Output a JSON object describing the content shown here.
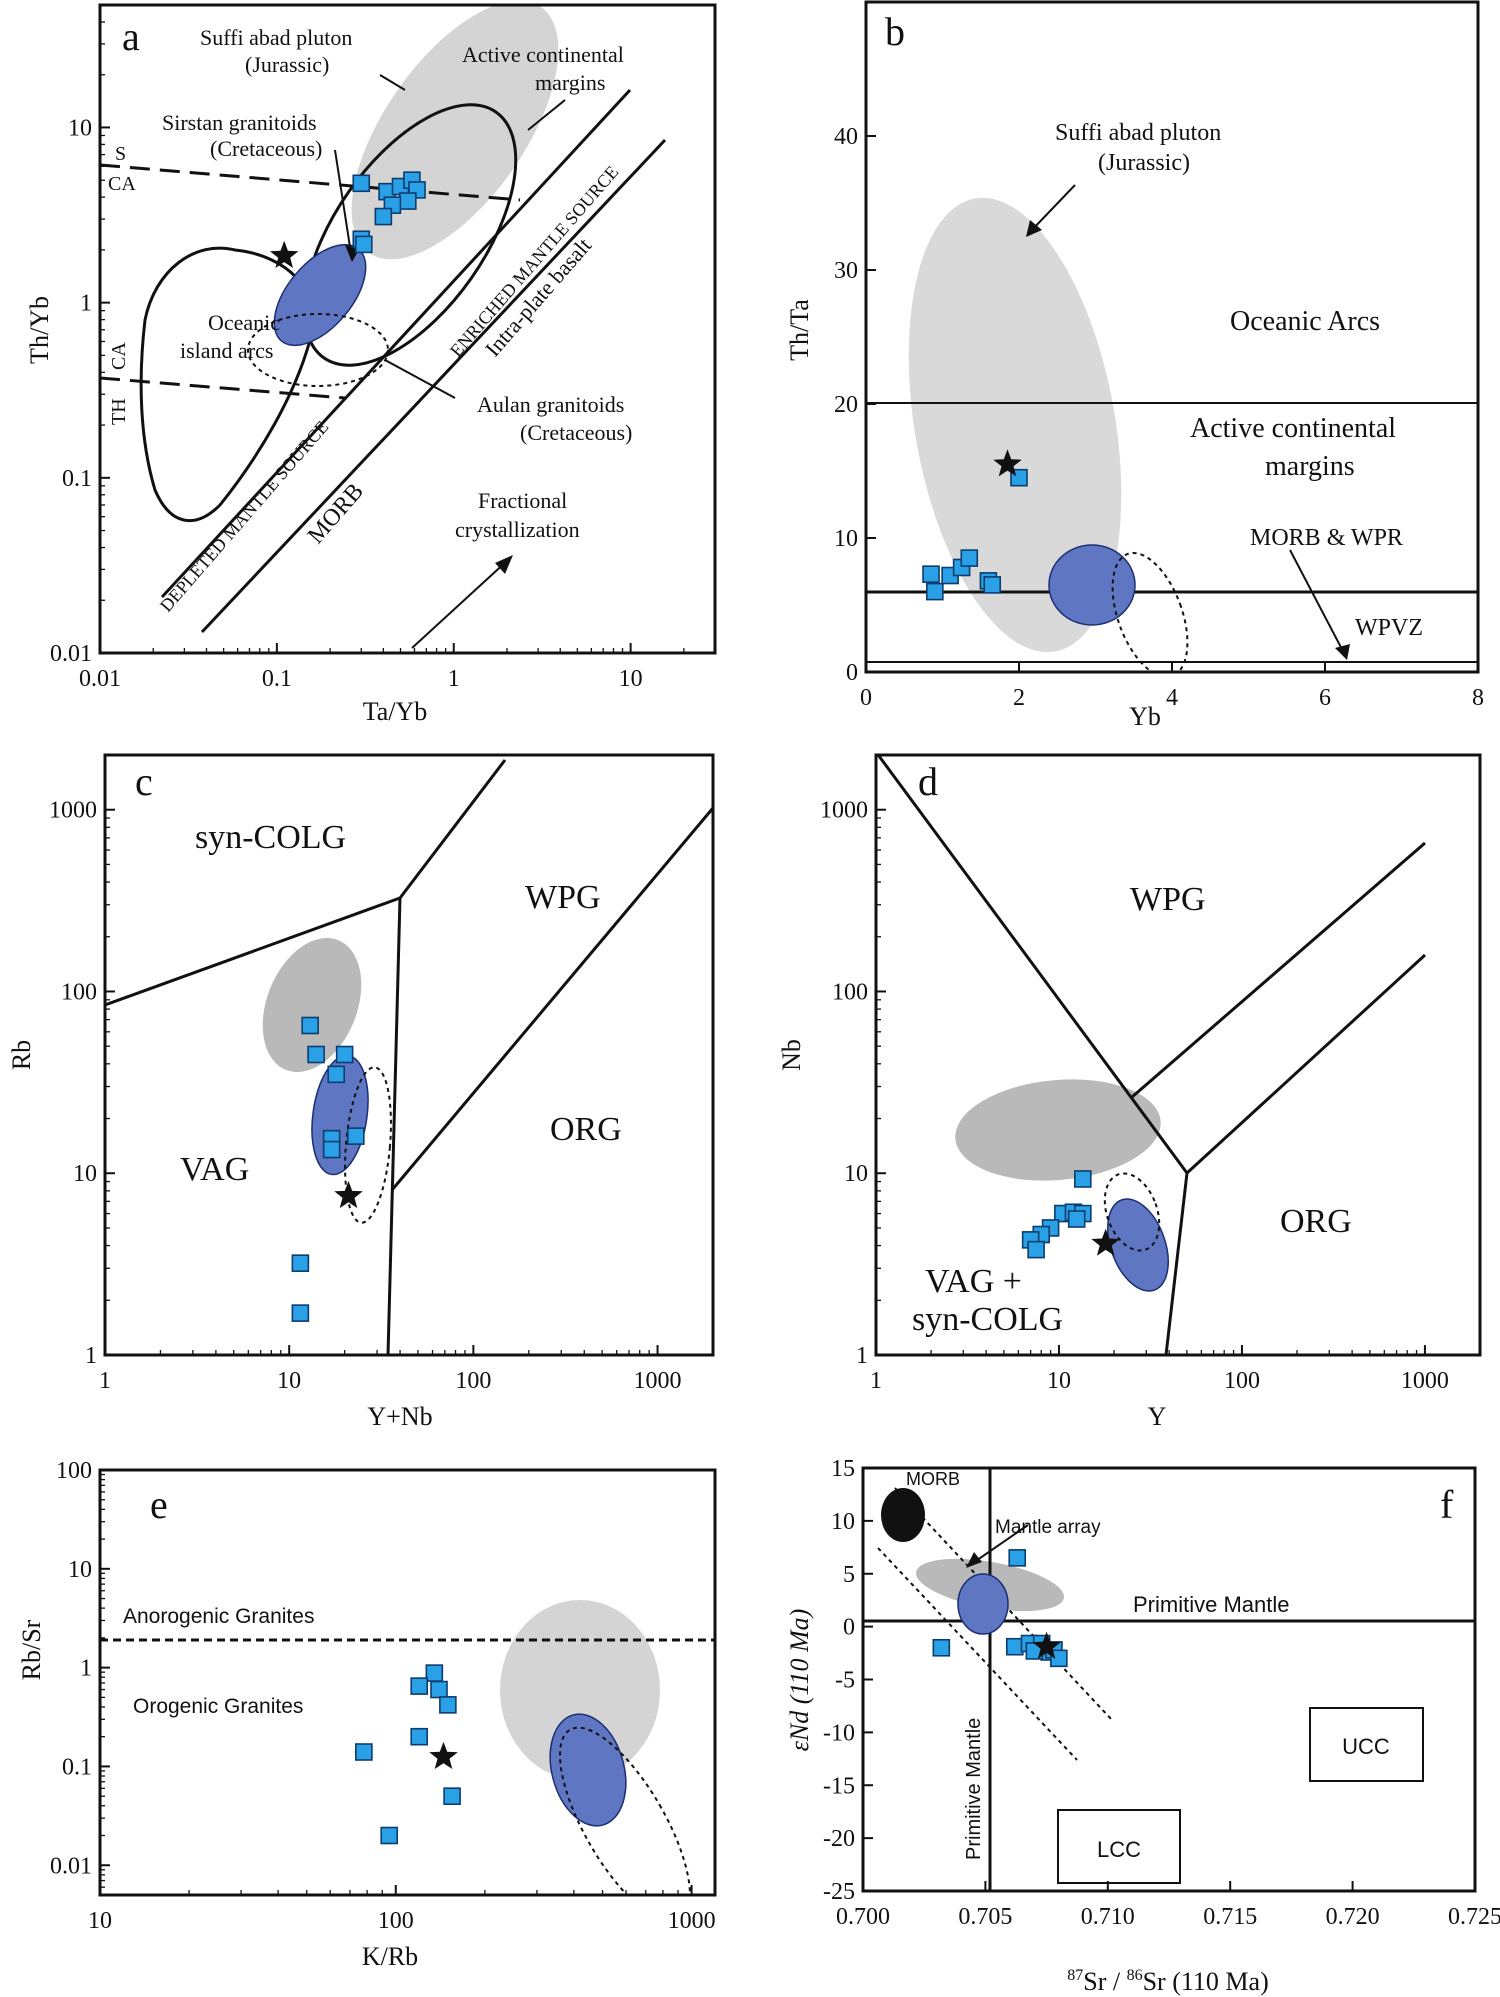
{
  "chart_data": [
    {
      "panel": "a",
      "type": "scatter",
      "xlabel": "Ta/Yb",
      "ylabel": "Th/Yb",
      "xscale": "log",
      "yscale": "log",
      "xlim": [
        0.01,
        30
      ],
      "ylim": [
        0.01,
        50
      ],
      "xticks": [
        "0.01",
        "0.1",
        "1",
        "10"
      ],
      "yticks": [
        "0.01",
        "0.1",
        "1",
        "10"
      ],
      "labels": {
        "suffi": "Suffi abad pluton",
        "suffi2": "(Jurassic)",
        "acm": "Active continental",
        "acm2": "margins",
        "sirstan": "Sirstan granitoids",
        "sirstan2": "(Cretaceous)",
        "oia": "Oceanic",
        "oia2": "island arcs",
        "aulan": "Aulan granitoids",
        "aulan2": "(Cretaceous)",
        "fc": "Fractional",
        "fc2": "crystallization",
        "s": "S",
        "ca": "CA",
        "th": "TH",
        "ca2": "CA",
        "enriched": "ENRICHED MANTLE SOURCE",
        "depleted": "DEPLETED MANTLE SOURCE",
        "intraplate": "Intra-plate basalt",
        "morb": "MORB"
      },
      "samples": [
        {
          "x": 0.3,
          "y": 4.8
        },
        {
          "x": 0.42,
          "y": 4.3
        },
        {
          "x": 0.5,
          "y": 4.6
        },
        {
          "x": 0.58,
          "y": 5.0
        },
        {
          "x": 0.62,
          "y": 4.4
        },
        {
          "x": 0.55,
          "y": 3.8
        },
        {
          "x": 0.45,
          "y": 3.6
        },
        {
          "x": 0.4,
          "y": 3.1
        },
        {
          "x": 0.3,
          "y": 2.3
        },
        {
          "x": 0.31,
          "y": 2.15
        }
      ],
      "star": {
        "x": 0.11,
        "y": 1.85
      }
    },
    {
      "panel": "b",
      "type": "scatter",
      "xlabel": "Yb",
      "ylabel": "Th/Ta",
      "xlim": [
        0,
        8
      ],
      "ylim": [
        0,
        50
      ],
      "xticks": [
        "0",
        "2",
        "4",
        "6",
        "8"
      ],
      "yticks": [
        "0",
        "10",
        "20",
        "30",
        "40"
      ],
      "labels": {
        "suffi": "Suffi abad pluton",
        "suffi2": "(Jurassic)",
        "oa": "Oceanic Arcs",
        "acm": "Active continental",
        "acm2": "margins",
        "morb": "MORB & WPR",
        "wpvz": "WPVZ"
      },
      "samples": [
        {
          "x": 2.0,
          "y": 14.5
        },
        {
          "x": 0.85,
          "y": 7.3
        },
        {
          "x": 0.9,
          "y": 6.0
        },
        {
          "x": 1.1,
          "y": 7.2
        },
        {
          "x": 1.25,
          "y": 7.8
        },
        {
          "x": 1.35,
          "y": 8.5
        },
        {
          "x": 1.6,
          "y": 6.8
        },
        {
          "x": 1.65,
          "y": 6.5
        }
      ],
      "star": {
        "x": 1.85,
        "y": 15.5
      }
    },
    {
      "panel": "c",
      "type": "scatter",
      "xlabel": "Y+Nb",
      "ylabel": "Rb",
      "xscale": "log",
      "yscale": "log",
      "xlim": [
        1,
        2000
      ],
      "ylim": [
        1,
        2000
      ],
      "xticks": [
        "1",
        "10",
        "100",
        "1000"
      ],
      "yticks": [
        "1",
        "10",
        "100",
        "1000"
      ],
      "labels": {
        "syncolg": "syn-COLG",
        "wpg": "WPG",
        "org": "ORG",
        "vag": "VAG"
      },
      "samples": [
        {
          "x": 13,
          "y": 65
        },
        {
          "x": 14,
          "y": 45
        },
        {
          "x": 20,
          "y": 45
        },
        {
          "x": 18,
          "y": 35
        },
        {
          "x": 17,
          "y": 15.5
        },
        {
          "x": 17,
          "y": 13.5
        },
        {
          "x": 23,
          "y": 16
        },
        {
          "x": 11.5,
          "y": 3.2
        },
        {
          "x": 11.5,
          "y": 1.7
        }
      ],
      "star": {
        "x": 21,
        "y": 7.5
      }
    },
    {
      "panel": "d",
      "type": "scatter",
      "xlabel": "Y",
      "ylabel": "Nb",
      "xscale": "log",
      "yscale": "log",
      "xlim": [
        1,
        2000
      ],
      "ylim": [
        1,
        2000
      ],
      "xticks": [
        "1",
        "10",
        "100",
        "1000"
      ],
      "yticks": [
        "1",
        "10",
        "100",
        "1000"
      ],
      "labels": {
        "wpg": "WPG",
        "org": "ORG",
        "vag": "VAG +",
        "vag2": "syn-COLG"
      },
      "samples": [
        {
          "x": 13.5,
          "y": 9.3
        },
        {
          "x": 10.5,
          "y": 6.0
        },
        {
          "x": 12,
          "y": 6.1
        },
        {
          "x": 13.5,
          "y": 6.0
        },
        {
          "x": 12.5,
          "y": 5.6
        },
        {
          "x": 9,
          "y": 5.0
        },
        {
          "x": 8,
          "y": 4.6
        },
        {
          "x": 7,
          "y": 4.3
        },
        {
          "x": 7.5,
          "y": 3.8
        }
      ],
      "star": {
        "x": 18,
        "y": 4.1
      }
    },
    {
      "panel": "e",
      "type": "scatter",
      "xlabel": "K/Rb",
      "ylabel": "Rb/Sr",
      "xscale": "log",
      "yscale": "log",
      "xlim": [
        10,
        1200
      ],
      "ylim": [
        0.005,
        100
      ],
      "xticks": [
        "10",
        "100",
        "1000"
      ],
      "yticks": [
        "0.01",
        "0.1",
        "1",
        "10",
        "100"
      ],
      "labels": {
        "anorogenic": "Anorogenic Granites",
        "orogenic": "Orogenic Granites"
      },
      "samples": [
        {
          "x": 135,
          "y": 0.88
        },
        {
          "x": 120,
          "y": 0.65
        },
        {
          "x": 140,
          "y": 0.6
        },
        {
          "x": 150,
          "y": 0.42
        },
        {
          "x": 120,
          "y": 0.2
        },
        {
          "x": 78,
          "y": 0.14
        },
        {
          "x": 155,
          "y": 0.05
        },
        {
          "x": 95,
          "y": 0.02
        }
      ],
      "star": {
        "x": 145,
        "y": 0.125
      }
    },
    {
      "panel": "f",
      "type": "scatter",
      "xlabel_main": "Sr / ",
      "xlabel_sup1": "87",
      "xlabel_sup2": "86",
      "xlabel_tail": "Sr (110 Ma)",
      "ylabel": "εNd (110 Ma)",
      "xlim": [
        0.7,
        0.725
      ],
      "ylim": [
        -25,
        15
      ],
      "xticks": [
        "0.700",
        "0.705",
        "0.710",
        "0.715",
        "0.720",
        "0.725"
      ],
      "yticks": [
        "15",
        "10",
        "5",
        "0",
        "-5",
        "-10",
        "-15",
        "-20",
        "-25"
      ],
      "labels": {
        "morb": "MORB",
        "mantle_array": "Mantle array",
        "primitive_mantle": "Primitive Mantle",
        "primitive_mantle_v": "Primitive Mantle",
        "ucc": "UCC",
        "lcc": "LCC"
      },
      "samples": [
        {
          "x": 0.7063,
          "y": 6.5
        },
        {
          "x": 0.7032,
          "y": -2.0
        },
        {
          "x": 0.7062,
          "y": -1.9
        },
        {
          "x": 0.7068,
          "y": -1.6
        },
        {
          "x": 0.7073,
          "y": -1.6
        },
        {
          "x": 0.7076,
          "y": -2.4
        },
        {
          "x": 0.7078,
          "y": -2.2
        },
        {
          "x": 0.708,
          "y": -3.0
        },
        {
          "x": 0.707,
          "y": -2.3
        }
      ],
      "star": {
        "x": 0.7075,
        "y": -1.9
      }
    }
  ],
  "colors": {
    "sample_fill": "#2aa0e6",
    "sample_stroke": "#0c3d6e",
    "sirstan_fill": "#5f76c2",
    "suffi_fill": "#d4d4d4",
    "suffi_fill_dark": "#b9b9b9",
    "morb_fill": "#111111"
  }
}
